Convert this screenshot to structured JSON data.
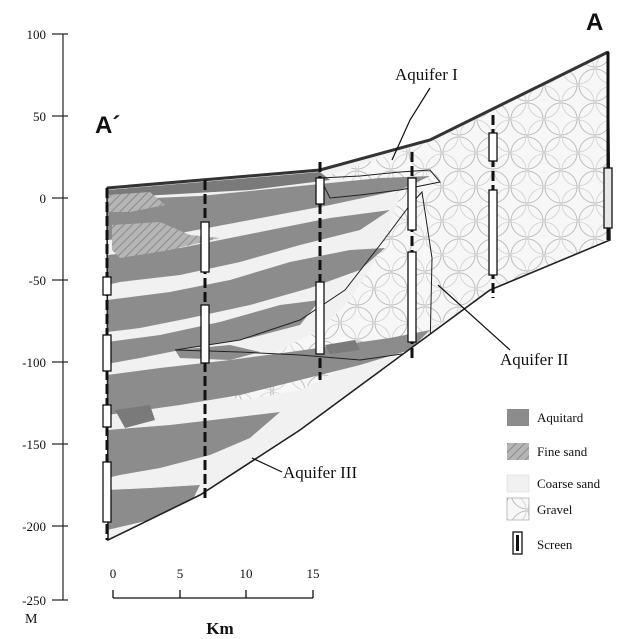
{
  "section": {
    "left_label": "A´",
    "right_label": "A"
  },
  "axis": {
    "unit": "M",
    "ticks": [
      "100",
      "50",
      "0",
      "-50",
      "-100",
      "-150",
      "-200",
      "-250"
    ]
  },
  "scale": {
    "ticks": [
      "0",
      "5",
      "10",
      "15"
    ],
    "unit": "Km"
  },
  "annotations": {
    "aquifer_1": "Aquifer I",
    "aquifer_2": "Aquifer II",
    "aquifer_3": "Aquifer III"
  },
  "legend": {
    "items": [
      {
        "key": "aquitard",
        "label": "Aquitard"
      },
      {
        "key": "fine-sand",
        "label": "Fine sand"
      },
      {
        "key": "coarse-sand",
        "label": "Coarse sand"
      },
      {
        "key": "gravel",
        "label": "Gravel"
      },
      {
        "key": "screen",
        "label": "Screen"
      }
    ]
  },
  "colors": {
    "aquitard": "#8c8c8c",
    "fine_sand": "#b5b5b5",
    "coarse_sand": "#f1f1f1",
    "gravel": "#f6f6f6",
    "outline": "#222222"
  }
}
